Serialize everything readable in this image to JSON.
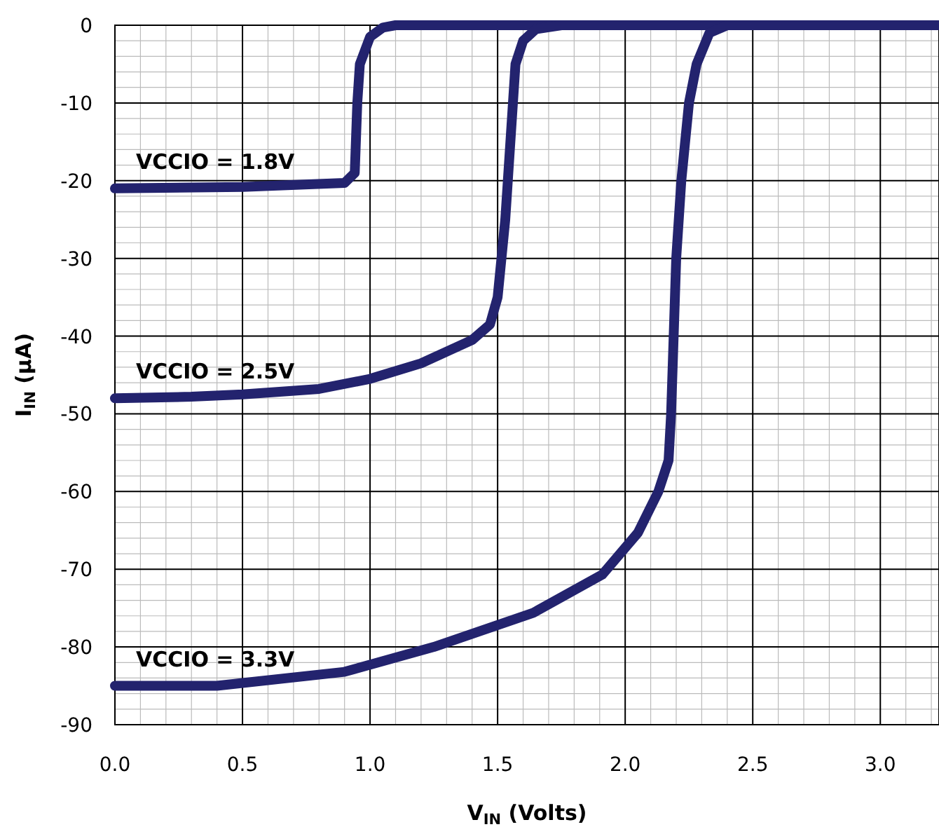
{
  "chart_data": {
    "type": "line",
    "xlabel": "V$_{IN}$ (Volts)",
    "ylabel": "I$_{IN}$ (µA)",
    "xlim": [
      0,
      3.23
    ],
    "ylim": [
      -90,
      0
    ],
    "xticks": [
      {
        "value": 0,
        "label": "0.0"
      },
      0.5,
      {
        "value": 1,
        "label": "1.0"
      },
      1.5,
      {
        "value": 2,
        "label": "2.0"
      },
      2.5,
      {
        "value": 3,
        "label": "3.0"
      }
    ],
    "yticks": [
      -90,
      -80,
      -70,
      -60,
      -50,
      -40,
      -30,
      -20,
      -10,
      0
    ],
    "grid": true,
    "marker": "none",
    "line_style": "solid",
    "series": [
      {
        "name": "VCCIO = 1.8V",
        "color": "#23236e",
        "x": [
          0,
          0.5,
          0.9,
          0.94,
          0.95,
          0.96,
          1.0,
          1.05,
          1.1,
          3.23
        ],
        "values": [
          -21,
          -20.8,
          -20.3,
          -19,
          -10,
          -5,
          -1.5,
          -0.3,
          0,
          0
        ]
      },
      {
        "name": "VCCIO = 2.5V",
        "color": "#23236e",
        "x": [
          0,
          0.3,
          0.5,
          0.8,
          1.0,
          1.2,
          1.4,
          1.47,
          1.5,
          1.53,
          1.55,
          1.57,
          1.6,
          1.65,
          1.75,
          3.23
        ],
        "values": [
          -48,
          -47.8,
          -47.5,
          -46.8,
          -45.5,
          -43.5,
          -40.5,
          -38.5,
          -35,
          -25,
          -15,
          -5,
          -2,
          -0.5,
          0,
          0
        ]
      },
      {
        "name": "VCCIO = 3.3V",
        "color": "#23236e",
        "x": [
          0,
          0.4,
          0.9,
          1.25,
          1.64,
          1.91,
          2.05,
          2.13,
          2.17,
          2.18,
          2.19,
          2.2,
          2.22,
          2.25,
          2.28,
          2.33,
          2.4,
          3.23
        ],
        "values": [
          -85,
          -85,
          -83.2,
          -80,
          -75.6,
          -70.7,
          -65.3,
          -60,
          -56,
          -50,
          -40,
          -30,
          -20,
          -10,
          -5,
          -1,
          0,
          0
        ]
      }
    ]
  }
}
